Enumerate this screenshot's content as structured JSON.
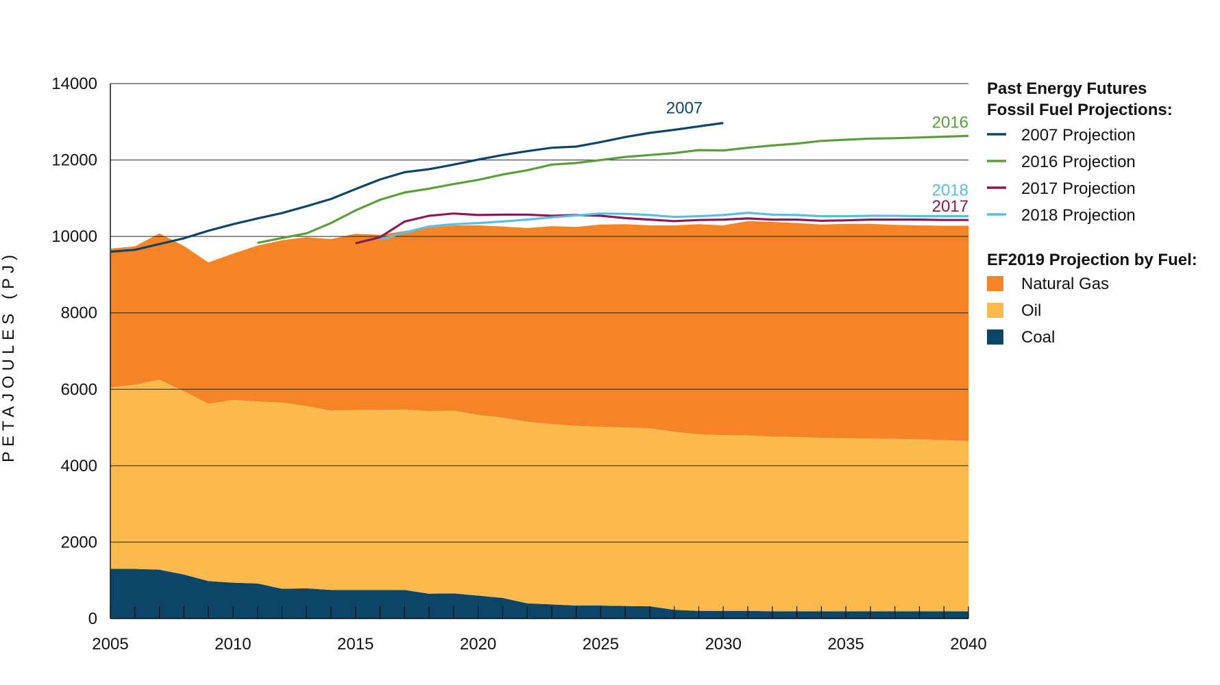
{
  "chart_data": {
    "type": "area",
    "ylabel": "PETAJOULES (PJ)",
    "xlabel": "",
    "xlim": [
      2005,
      2040
    ],
    "ylim": [
      0,
      14000
    ],
    "x_ticks": [
      2005,
      2010,
      2015,
      2020,
      2025,
      2030,
      2035,
      2040
    ],
    "y_ticks": [
      0,
      2000,
      4000,
      6000,
      8000,
      10000,
      12000,
      14000
    ],
    "grid": "horizontal",
    "x": [
      2005,
      2006,
      2007,
      2008,
      2009,
      2010,
      2011,
      2012,
      2013,
      2014,
      2015,
      2016,
      2017,
      2018,
      2019,
      2020,
      2021,
      2022,
      2023,
      2024,
      2025,
      2026,
      2027,
      2028,
      2029,
      2030,
      2031,
      2032,
      2033,
      2034,
      2035,
      2036,
      2037,
      2038,
      2039,
      2040
    ],
    "stacked_series": [
      {
        "name": "Coal",
        "color": "#0d4568",
        "values": [
          1300,
          1300,
          1280,
          1150,
          980,
          940,
          920,
          780,
          790,
          750,
          750,
          750,
          750,
          650,
          660,
          600,
          540,
          400,
          370,
          340,
          340,
          330,
          320,
          230,
          200,
          200,
          200,
          190,
          190,
          190,
          190,
          190,
          190,
          190,
          190,
          190
        ]
      },
      {
        "name": "Oil",
        "color": "#fbba4b",
        "values": [
          4750,
          4820,
          4970,
          4800,
          4640,
          4780,
          4760,
          4870,
          4770,
          4690,
          4710,
          4710,
          4720,
          4780,
          4780,
          4730,
          4720,
          4750,
          4720,
          4700,
          4680,
          4670,
          4660,
          4660,
          4620,
          4600,
          4590,
          4570,
          4560,
          4540,
          4530,
          4520,
          4510,
          4500,
          4480,
          4460
        ]
      },
      {
        "name": "Natural Gas",
        "color": "#f58426",
        "values": [
          3630,
          3620,
          3830,
          3800,
          3700,
          3830,
          4080,
          4250,
          4420,
          4490,
          4610,
          4580,
          4670,
          4800,
          4850,
          4960,
          5000,
          5070,
          5180,
          5210,
          5290,
          5320,
          5310,
          5400,
          5500,
          5490,
          5610,
          5620,
          5600,
          5580,
          5610,
          5620,
          5600,
          5600,
          5610,
          5630
        ]
      }
    ],
    "line_series": [
      {
        "name": "2007 Projection",
        "end_label": "2007",
        "color": "#0e4566",
        "x": [
          2005,
          2006,
          2007,
          2008,
          2009,
          2010,
          2011,
          2012,
          2013,
          2014,
          2015,
          2016,
          2017,
          2018,
          2019,
          2020,
          2021,
          2022,
          2023,
          2024,
          2025,
          2026,
          2027,
          2028,
          2029,
          2030
        ],
        "values": [
          9600,
          9650,
          9800,
          9950,
          10150,
          10320,
          10470,
          10610,
          10790,
          10980,
          11240,
          11490,
          11680,
          11760,
          11880,
          12010,
          12130,
          12230,
          12320,
          12350,
          12470,
          12600,
          12710,
          12790,
          12880,
          12970
        ]
      },
      {
        "name": "2016 Projection",
        "end_label": "2016",
        "color": "#5a9e3c",
        "x": [
          2011,
          2012,
          2013,
          2014,
          2015,
          2016,
          2017,
          2018,
          2019,
          2020,
          2021,
          2022,
          2023,
          2024,
          2025,
          2026,
          2027,
          2028,
          2029,
          2030,
          2031,
          2032,
          2033,
          2034,
          2035,
          2036,
          2037,
          2038,
          2039,
          2040
        ],
        "values": [
          9830,
          9960,
          10080,
          10350,
          10680,
          10960,
          11150,
          11250,
          11370,
          11480,
          11620,
          11730,
          11880,
          11920,
          12000,
          12080,
          12130,
          12180,
          12260,
          12250,
          12320,
          12380,
          12430,
          12500,
          12530,
          12560,
          12570,
          12590,
          12610,
          12630
        ]
      },
      {
        "name": "2017 Projection",
        "end_label": "2017",
        "color": "#8a1a56",
        "x": [
          2015,
          2016,
          2017,
          2018,
          2019,
          2020,
          2021,
          2022,
          2023,
          2024,
          2025,
          2026,
          2027,
          2028,
          2029,
          2030,
          2031,
          2032,
          2033,
          2034,
          2035,
          2036,
          2037,
          2038,
          2039,
          2040
        ],
        "values": [
          9820,
          9980,
          10390,
          10540,
          10600,
          10560,
          10570,
          10570,
          10540,
          10560,
          10540,
          10480,
          10440,
          10400,
          10430,
          10440,
          10470,
          10440,
          10440,
          10410,
          10420,
          10440,
          10440,
          10440,
          10430,
          10430
        ]
      },
      {
        "name": "2018 Projection",
        "end_label": "2018",
        "color": "#5bbde4",
        "x": [
          2016,
          2017,
          2018,
          2019,
          2020,
          2021,
          2022,
          2023,
          2024,
          2025,
          2026,
          2027,
          2028,
          2029,
          2030,
          2031,
          2032,
          2033,
          2034,
          2035,
          2036,
          2037,
          2038,
          2039,
          2040
        ],
        "values": [
          9920,
          10100,
          10260,
          10320,
          10350,
          10390,
          10440,
          10500,
          10550,
          10600,
          10590,
          10560,
          10510,
          10530,
          10560,
          10620,
          10570,
          10560,
          10530,
          10530,
          10540,
          10540,
          10530,
          10530,
          10530
        ]
      }
    ]
  },
  "legend": {
    "lines_title_1": "Past Energy Futures",
    "lines_title_2": "Fossil Fuel Projections:",
    "lines": [
      "2007 Projection",
      "2016 Projection",
      "2017 Projection",
      "2018 Projection"
    ],
    "line_colors": [
      "#0e4566",
      "#5a9e3c",
      "#8a1a56",
      "#5bbde4"
    ],
    "fuel_title": "EF2019 Projection by Fuel:",
    "fuels": [
      "Natural Gas",
      "Oil",
      "Coal"
    ],
    "fuel_colors": [
      "#f58426",
      "#fbba4b",
      "#0d4568"
    ]
  }
}
